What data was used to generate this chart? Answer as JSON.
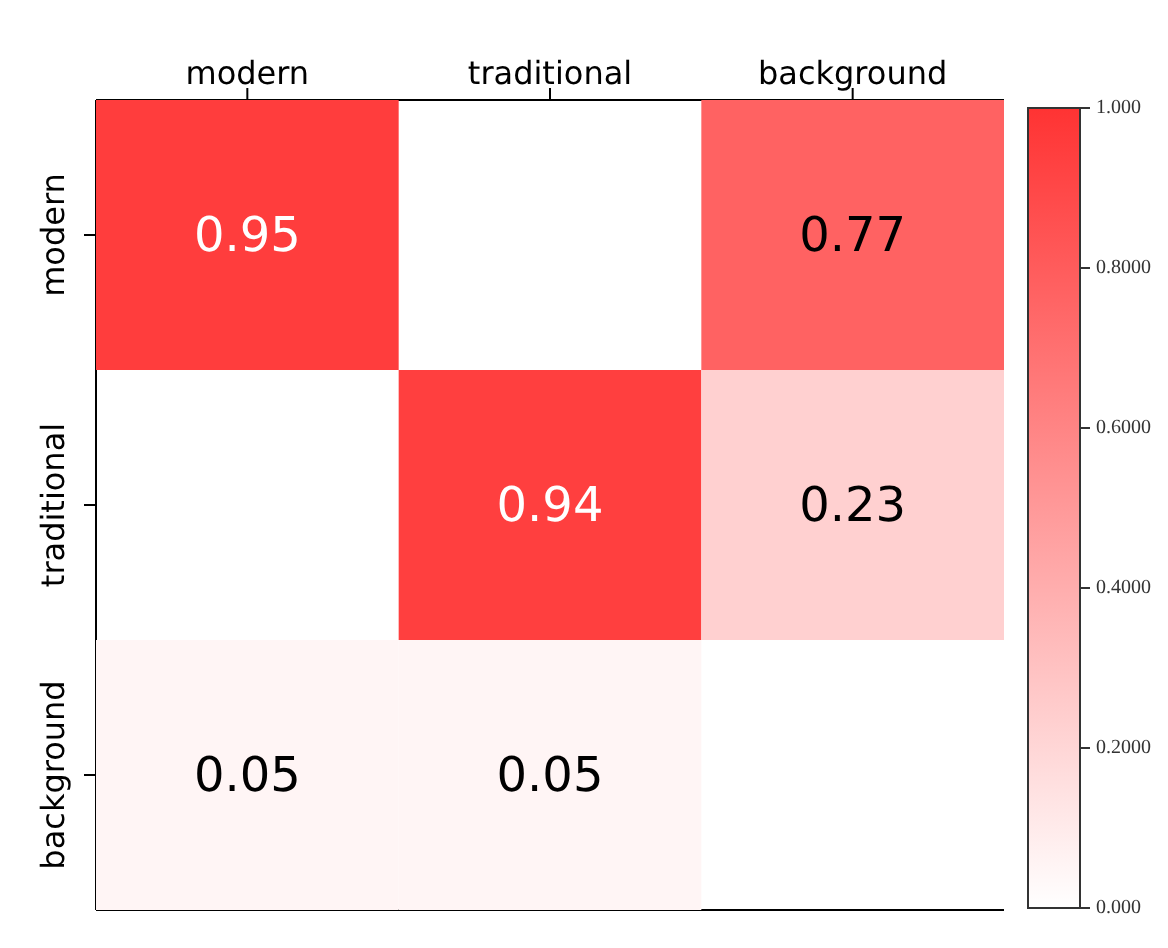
{
  "chart_data": {
    "type": "heatmap",
    "categories": [
      "modern",
      "traditional",
      "background"
    ],
    "y_categories": [
      "modern",
      "traditional",
      "background"
    ],
    "cells": [
      [
        0.95,
        null,
        0.77
      ],
      [
        null,
        0.94,
        0.23
      ],
      [
        0.05,
        0.05,
        null
      ]
    ],
    "data_labels": true,
    "clim": [
      0,
      1
    ],
    "cticks": [
      {
        "value": 0,
        "label": "0.000"
      },
      {
        "value": 0.2,
        "label": "0.2000"
      },
      {
        "value": 0.4,
        "label": "0.4000"
      },
      {
        "value": 0.6,
        "label": "0.6000"
      },
      {
        "value": 0.8,
        "label": "0.8000"
      },
      {
        "value": 1,
        "label": "1.000"
      }
    ]
  }
}
